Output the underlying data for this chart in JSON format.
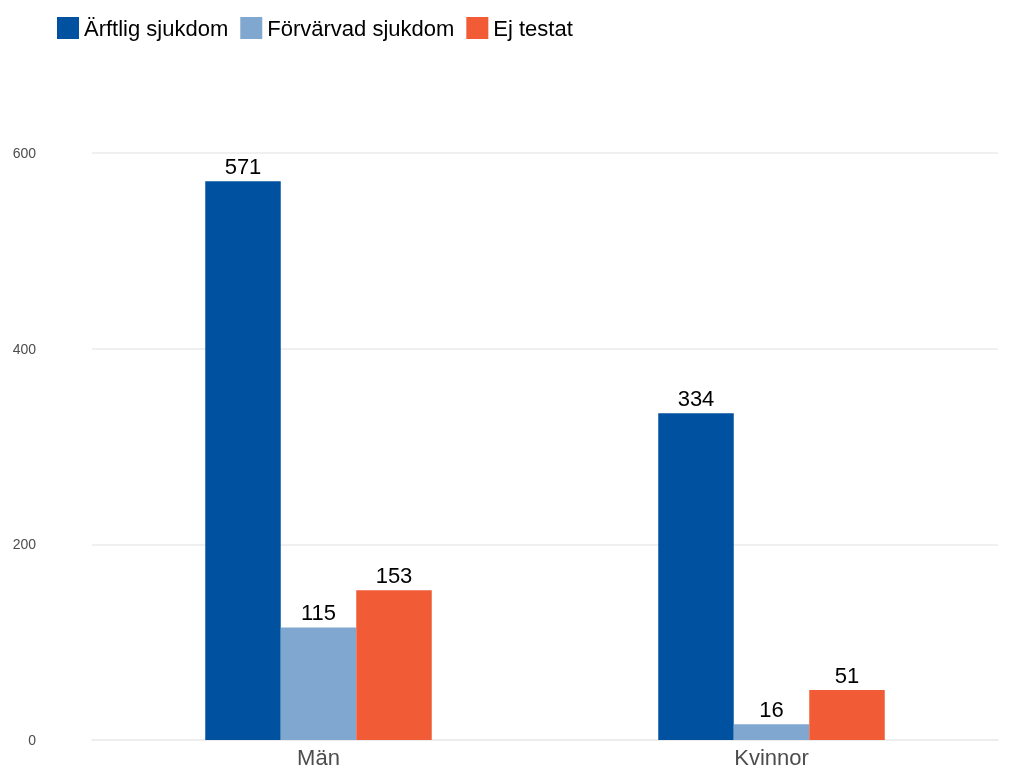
{
  "chart_data": {
    "type": "bar",
    "categories": [
      "Män",
      "Kvinnor"
    ],
    "series": [
      {
        "name": "Ärftlig sjukdom",
        "color": "#00519f",
        "values": [
          571,
          334
        ]
      },
      {
        "name": "Förvärvad sjukdom",
        "color": "#80a7d0",
        "values": [
          115,
          16
        ]
      },
      {
        "name": "Ej testat",
        "color": "#f15b35",
        "values": [
          153,
          51
        ]
      }
    ],
    "ylim": [
      0,
      600
    ],
    "yticks": [
      0,
      200,
      400,
      600
    ],
    "grid": "y",
    "legend": "top left",
    "data_labels": true
  }
}
